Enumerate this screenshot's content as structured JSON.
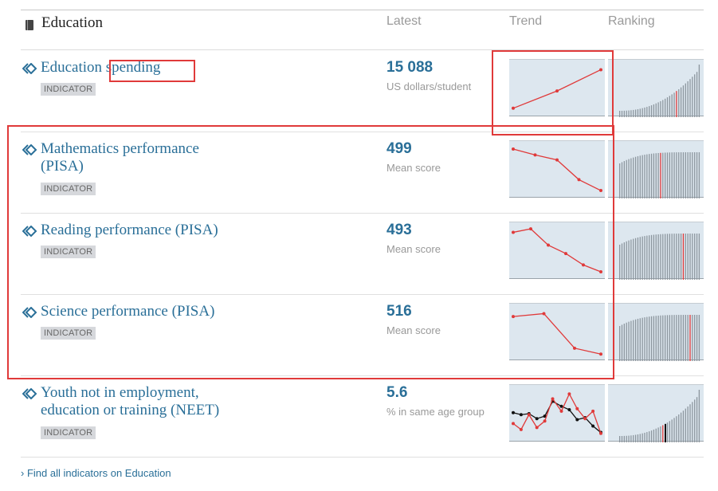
{
  "header": {
    "title": "Education",
    "columns": {
      "latest": "Latest",
      "trend": "Trend",
      "ranking": "Ranking"
    }
  },
  "rows": [
    {
      "title_lines": [
        "Education spending"
      ],
      "badge": "INDICATOR",
      "value": "15 088",
      "unit": "US dollars/student",
      "trend": {
        "y": [
          10,
          45,
          88
        ],
        "x": [
          0,
          0.5,
          1
        ]
      },
      "ranking_bars": 36,
      "highlight_rank": 0.7
    },
    {
      "title_lines": [
        "Mathematics performance",
        "(PISA)"
      ],
      "badge": "INDICATOR",
      "value": "499",
      "unit": "Mean score",
      "trend": {
        "y": [
          92,
          80,
          70,
          30,
          8
        ],
        "x": [
          0,
          0.25,
          0.5,
          0.75,
          1
        ]
      },
      "ranking_bars": 36,
      "highlight_rank": 0.5
    },
    {
      "title_lines": [
        "Reading performance (PISA)"
      ],
      "badge": "INDICATOR",
      "value": "493",
      "unit": "Mean score",
      "trend": {
        "y": [
          88,
          95,
          62,
          45,
          22,
          8
        ],
        "x": [
          0,
          0.2,
          0.4,
          0.6,
          0.8,
          1
        ]
      },
      "ranking_bars": 36,
      "highlight_rank": 0.8
    },
    {
      "title_lines": [
        "Science performance (PISA)"
      ],
      "badge": "INDICATOR",
      "value": "516",
      "unit": "Mean score",
      "trend": {
        "y": [
          82,
          88,
          18,
          6
        ],
        "x": [
          0,
          0.35,
          0.7,
          1
        ]
      },
      "ranking_bars": 36,
      "highlight_rank": 0.88
    },
    {
      "title_lines": [
        "Youth not in employment,",
        "education or training (NEET)"
      ],
      "badge": "INDICATOR",
      "value": "5.6",
      "unit": "% in same age group",
      "trend": {
        "y": [
          30,
          18,
          48,
          22,
          35,
          80,
          55,
          90,
          60,
          40,
          55,
          10
        ],
        "x": [
          0,
          0.09,
          0.18,
          0.27,
          0.36,
          0.45,
          0.55,
          0.64,
          0.73,
          0.82,
          0.91,
          1
        ],
        "y2": [
          52,
          48,
          50,
          40,
          45,
          75,
          65,
          58,
          38,
          42,
          25,
          12
        ]
      },
      "ranking_bars": 36,
      "highlight_rank": 0.55
    }
  ],
  "footer": {
    "link": "› Find all indicators on Education"
  },
  "colors": {
    "accent": "#2a6f98",
    "trend_line": "#e03a3a",
    "chart_bg": "#dde7ef",
    "bar": "#8c969e"
  }
}
